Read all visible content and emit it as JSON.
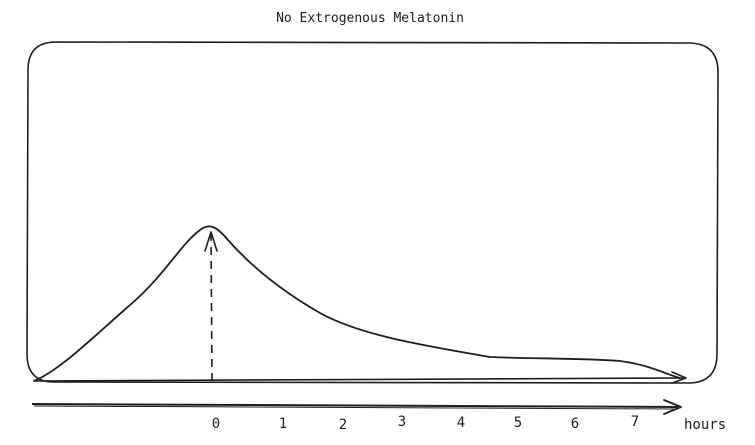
{
  "diagram": {
    "title": "No Extrogenous Melatonin",
    "axis_unit": "hours",
    "ticks": [
      "0",
      "1",
      "2",
      "3",
      "4",
      "5",
      "6",
      "7"
    ]
  },
  "chart_data": {
    "type": "line",
    "title": "No Extrogenous Melatonin",
    "xlabel": "hours",
    "ylabel": "",
    "x_ticks": [
      "0",
      "1",
      "2",
      "3",
      "4",
      "5",
      "6",
      "7"
    ],
    "peak_x": 0,
    "legend": "none",
    "grid": false
  },
  "colors": {
    "stroke": "#1e1e1e",
    "background": "#ffffff"
  }
}
